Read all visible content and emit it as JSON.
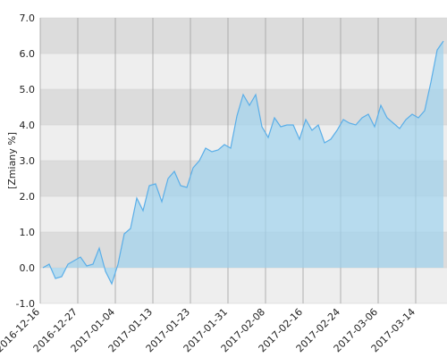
{
  "chart_data": {
    "type": "area",
    "y_label": "[Zmiany %]",
    "categories": [
      "2016-12-16",
      null,
      null,
      null,
      null,
      null,
      "2016-12-27",
      null,
      null,
      null,
      null,
      null,
      "2017-01-04",
      null,
      null,
      null,
      null,
      null,
      "2017-01-13",
      null,
      null,
      null,
      null,
      null,
      "2017-01-23",
      null,
      null,
      null,
      null,
      null,
      "2017-01-31",
      null,
      null,
      null,
      null,
      null,
      "2017-02-08",
      null,
      null,
      null,
      null,
      null,
      "2017-02-16",
      null,
      null,
      null,
      null,
      null,
      "2017-02-24",
      null,
      null,
      null,
      null,
      null,
      "2017-03-06",
      null,
      null,
      null,
      null,
      null,
      "2017-03-14",
      null,
      null,
      null,
      null
    ],
    "values": [
      0.0,
      0.1,
      -0.3,
      -0.25,
      0.1,
      0.2,
      0.3,
      0.05,
      0.1,
      0.55,
      -0.1,
      -0.45,
      0.1,
      0.95,
      1.1,
      1.95,
      1.6,
      2.3,
      2.35,
      1.85,
      2.5,
      2.7,
      2.3,
      2.25,
      2.8,
      3.0,
      3.35,
      3.25,
      3.3,
      3.45,
      3.35,
      4.25,
      4.85,
      4.55,
      4.85,
      3.95,
      3.65,
      4.2,
      3.95,
      4.0,
      4.0,
      3.6,
      4.15,
      3.85,
      4.0,
      3.5,
      3.6,
      3.85,
      4.15,
      4.05,
      4.0,
      4.2,
      4.3,
      3.95,
      4.55,
      4.2,
      4.05,
      3.9,
      4.15,
      4.3,
      4.2,
      4.4,
      5.2,
      6.1,
      6.35
    ],
    "color": "#5aaee8",
    "ylim": [
      -1,
      7
    ],
    "yticks": [
      {
        "value": -1,
        "label": "-1.0"
      },
      {
        "value": 0,
        "label": "0.0"
      },
      {
        "value": 1,
        "label": "1.0"
      },
      {
        "value": 2,
        "label": "2.0"
      },
      {
        "value": 3,
        "label": "3.0"
      },
      {
        "value": 4,
        "label": "4.0"
      },
      {
        "value": 5,
        "label": "5.0"
      },
      {
        "value": 6,
        "label": "6.0"
      },
      {
        "value": 7,
        "label": "7.0"
      }
    ],
    "grid": true
  }
}
